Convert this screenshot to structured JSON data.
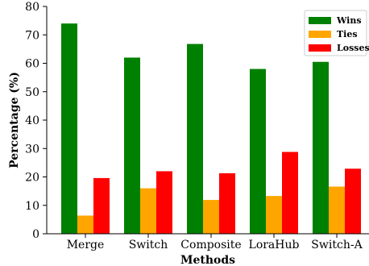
{
  "chart_data": {
    "type": "bar",
    "title": "",
    "xlabel": "Methods",
    "ylabel": "Percentage (%)",
    "categories": [
      "Merge",
      "Switch",
      "Composite",
      "LoraHub",
      "Switch-A"
    ],
    "series": [
      {
        "name": "Wins",
        "color": "#008000",
        "values": [
          74.0,
          62.0,
          66.8,
          58.0,
          60.5
        ]
      },
      {
        "name": "Ties",
        "color": "#FFA500",
        "values": [
          6.4,
          16.0,
          11.9,
          13.3,
          16.6
        ]
      },
      {
        "name": "Losses",
        "color": "#FF0000",
        "values": [
          19.6,
          22.0,
          21.3,
          28.8,
          22.9
        ]
      }
    ],
    "ylim": [
      0,
      80
    ],
    "yticks": [
      0,
      10,
      20,
      30,
      40,
      50,
      60,
      70,
      80
    ],
    "grid": false,
    "legend_position": "top-right"
  }
}
